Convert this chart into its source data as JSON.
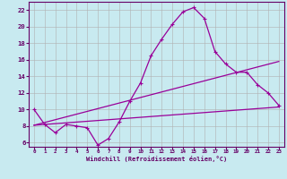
{
  "xlabel": "Windchill (Refroidissement éolien,°C)",
  "background_color": "#c8eaf0",
  "grid_color": "#b0b0b0",
  "line_color": "#990099",
  "xlim": [
    -0.5,
    23.5
  ],
  "ylim": [
    5.5,
    23.0
  ],
  "x_ticks": [
    0,
    1,
    2,
    3,
    4,
    5,
    6,
    7,
    8,
    9,
    10,
    11,
    12,
    13,
    14,
    15,
    16,
    17,
    18,
    19,
    20,
    21,
    22,
    23
  ],
  "y_ticks": [
    6,
    8,
    10,
    12,
    14,
    16,
    18,
    20,
    22
  ],
  "curve1_x": [
    0,
    1,
    2,
    3,
    4,
    5,
    6,
    7,
    8,
    9,
    10,
    11,
    12,
    13,
    14,
    15,
    16,
    17,
    18,
    19,
    20,
    21,
    22,
    23
  ],
  "curve1_y": [
    10.0,
    8.2,
    7.2,
    8.2,
    8.0,
    7.8,
    5.7,
    6.5,
    8.5,
    11.0,
    13.2,
    16.5,
    18.5,
    20.3,
    21.8,
    22.3,
    21.0,
    17.0,
    15.5,
    14.5,
    14.5,
    13.0,
    12.0,
    10.5
  ],
  "line2_x": [
    0,
    23
  ],
  "line2_y": [
    8.1,
    10.3
  ],
  "line3_x": [
    0,
    23
  ],
  "line3_y": [
    8.1,
    15.8
  ]
}
